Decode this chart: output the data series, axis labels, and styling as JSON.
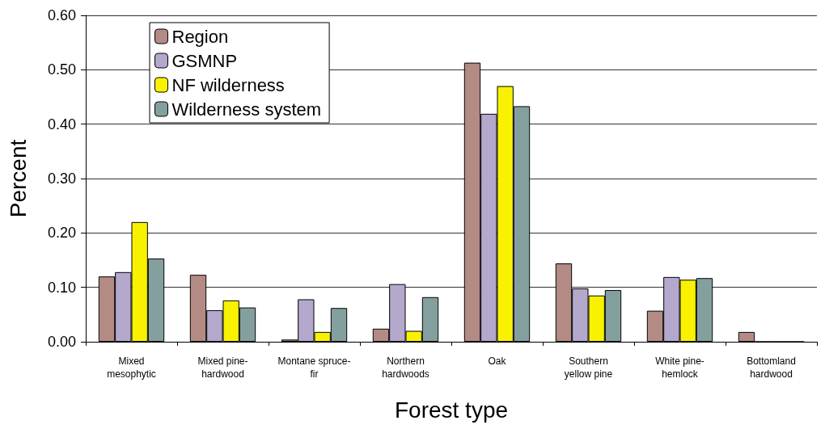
{
  "chart_data": {
    "type": "bar",
    "xlabel": "Forest type",
    "ylabel": "Percent",
    "categories": [
      "Mixed mesophytic",
      "Mixed pine-hardwood",
      "Montane spruce-fir",
      "Northern hardwoods",
      "Oak",
      "Southern yellow pine",
      "White pine-hemlock",
      "Bottomland hardwood"
    ],
    "series": [
      {
        "name": "Region",
        "color": "#b48a84",
        "values": [
          0.12,
          0.123,
          0.004,
          0.024,
          0.513,
          0.144,
          0.057,
          0.018
        ]
      },
      {
        "name": "GSMNP",
        "color": "#b4a8cc",
        "values": [
          0.128,
          0.058,
          0.078,
          0.106,
          0.419,
          0.098,
          0.119,
          0
        ]
      },
      {
        "name": "NF wilderness",
        "color": "#f8f200",
        "values": [
          0.22,
          0.076,
          0.018,
          0.02,
          0.47,
          0.085,
          0.114,
          0
        ]
      },
      {
        "name": "Wilderness system",
        "color": "#84a09e",
        "values": [
          0.153,
          0.063,
          0.062,
          0.082,
          0.433,
          0.095,
          0.117,
          0
        ]
      }
    ],
    "ylim": [
      0,
      0.6
    ],
    "yticks": [
      {
        "value": 0,
        "label": "0.00"
      },
      {
        "value": 0.1,
        "label": "0.10"
      },
      {
        "value": 0.2,
        "label": "0.20"
      },
      {
        "value": 0.3,
        "label": "0.30"
      },
      {
        "value": 0.4,
        "label": "0.40"
      },
      {
        "value": 0.5,
        "label": "0.50"
      },
      {
        "value": 0.6,
        "label": "0.60"
      }
    ],
    "grid": "y",
    "legend": "top left"
  }
}
